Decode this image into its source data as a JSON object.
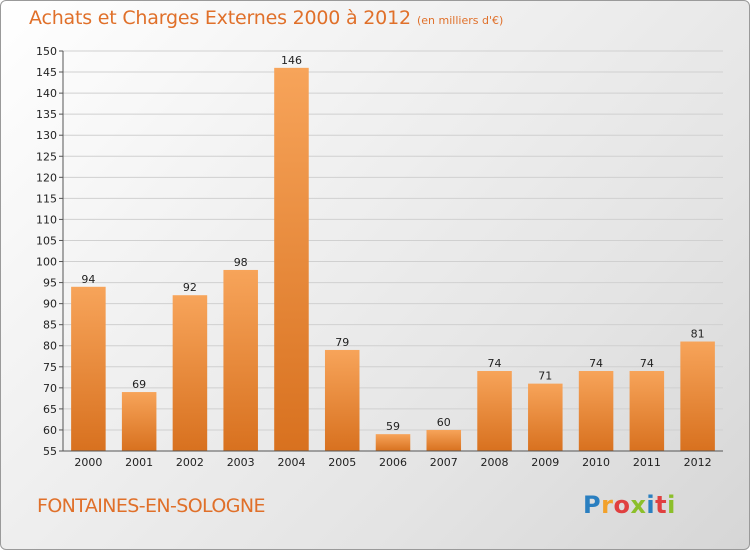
{
  "header": {
    "title": "Achats et Charges Externes 2000 à 2012",
    "subtitle": "(en milliers d'€)"
  },
  "footer": {
    "commune": "FONTAINES-EN-SOLOGNE",
    "logo": {
      "letters": [
        {
          "ch": "P",
          "color": "#2a7fc0"
        },
        {
          "ch": "r",
          "color": "#f2a12a"
        },
        {
          "ch": "o",
          "color": "#e04040"
        },
        {
          "ch": "x",
          "color": "#8cbf2a"
        },
        {
          "ch": "i",
          "color": "#2a7fc0"
        },
        {
          "ch": "t",
          "color": "#e04040"
        },
        {
          "ch": "i",
          "color": "#8cbf2a"
        }
      ]
    }
  },
  "colors": {
    "accent": "#e0702a",
    "bar_light": "#f7a45a",
    "bar_dark": "#d8711f"
  },
  "chart_data": {
    "type": "bar",
    "title": "Achats et Charges Externes 2000 à 2012",
    "subtitle": "(en milliers d'€)",
    "categories": [
      "2000",
      "2001",
      "2002",
      "2003",
      "2004",
      "2005",
      "2006",
      "2007",
      "2008",
      "2009",
      "2010",
      "2011",
      "2012"
    ],
    "values": [
      94,
      69,
      92,
      98,
      146,
      79,
      59,
      60,
      74,
      71,
      74,
      74,
      81
    ],
    "ylim": [
      55,
      150
    ],
    "yticks": [
      55,
      60,
      65,
      70,
      75,
      80,
      85,
      90,
      95,
      100,
      105,
      110,
      115,
      120,
      125,
      130,
      135,
      140,
      145,
      150
    ],
    "grid": true,
    "data_labels": true
  }
}
